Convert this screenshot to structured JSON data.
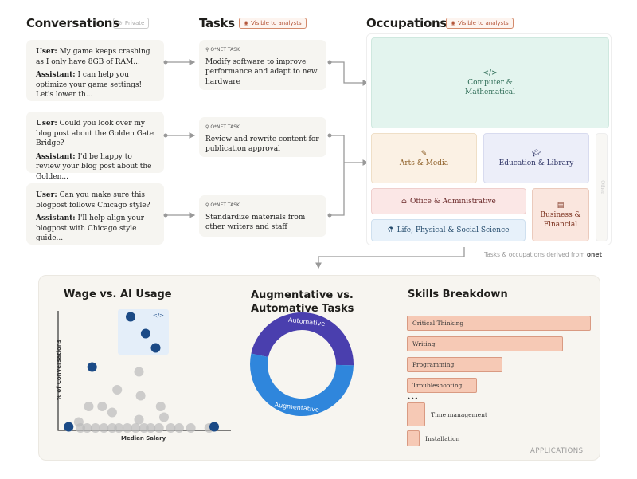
{
  "conversations": {
    "title": "Conversations",
    "badge": "Private",
    "items": [
      {
        "user_label": "User:",
        "user": "My game keeps crashing as I only have 8GB of RAM...",
        "assistant_label": "Assistant:",
        "assistant": "I can help you optimize your game settings! Let's lower th..."
      },
      {
        "user_label": "User:",
        "user": "Could you look over my blog post about the Golden Gate Bridge?",
        "assistant_label": "Assistant:",
        "assistant": "I'd be happy to review your blog post about the Golden..."
      },
      {
        "user_label": "User:",
        "user": "Can you make sure this blogpost follows Chicago style?",
        "assistant_label": "Assistant:",
        "assistant": "I'll help align your blogpost with Chicago style guide..."
      }
    ]
  },
  "tasks": {
    "title": "Tasks",
    "badge": "Visible to analysts",
    "items": [
      {
        "label": "O*NET TASK",
        "text": "Modify software to improve performance and adapt to new hardware"
      },
      {
        "label": "O*NET TASK",
        "text": "Review and rewrite content for publication approval"
      },
      {
        "label": "O*NET TASK",
        "text": "Standardize materials from other writers and staff"
      }
    ]
  },
  "occupations": {
    "title": "Occupations",
    "badge": "Visible to analysts",
    "items": [
      {
        "name": "Computer & Mathematical",
        "icon": "code-icon",
        "color": "#e3f4ee",
        "text": "#2d6b55"
      },
      {
        "name": "Arts & Media",
        "icon": "brush-icon",
        "color": "#fbf1e4",
        "text": "#8a5a20"
      },
      {
        "name": "Education & Library",
        "icon": "graduation-cap-icon",
        "color": "#eceef9",
        "text": "#2f3566"
      },
      {
        "name": "Office & Administrative",
        "icon": "building-icon",
        "color": "#fbe7e6",
        "text": "#6b2a2a"
      },
      {
        "name": "Life, Physical & Social Science",
        "icon": "flask-icon",
        "color": "#e7f1fa",
        "text": "#234a6b"
      },
      {
        "name": "Business & Financial",
        "icon": "table-icon",
        "color": "#fae6de",
        "text": "#7a2f1c"
      },
      {
        "name": "Other",
        "color": "#f8f7f4",
        "text": "#ccc"
      }
    ],
    "footer": "Tasks & occupations derived from",
    "footer_brand": "onet"
  },
  "applications": {
    "label": "APPLICATIONS",
    "wage": {
      "title": "Wage vs. AI Usage",
      "xlabel": "Median Salary",
      "ylabel": "% of Conversations"
    },
    "donut": {
      "title_line1": "Augmentative vs.",
      "title_line2": "Automative Tasks"
    },
    "skills": {
      "title": "Skills Breakdown",
      "ellipsis": "•••"
    }
  },
  "chart_data": [
    {
      "type": "scatter",
      "title": "Wage vs. AI Usage",
      "xlabel": "Median Salary",
      "ylabel": "% of Conversations",
      "xlim": [
        0,
        100
      ],
      "ylim": [
        0,
        100
      ],
      "highlighted": {
        "icon": "code-icon",
        "points": [
          [
            40,
            95
          ],
          [
            49,
            81
          ],
          [
            55,
            69
          ]
        ],
        "color": "#1b4a86"
      },
      "icon_points": [
        {
          "icon": "graduation-cap-icon",
          "x": 17,
          "y": 53
        },
        {
          "icon": "scale-icon",
          "x": 3,
          "y": 3
        },
        {
          "icon": "stethoscope-icon",
          "x": 90,
          "y": 3
        }
      ],
      "gray_points": [
        [
          45,
          49
        ],
        [
          32,
          34
        ],
        [
          46,
          29
        ],
        [
          15,
          20
        ],
        [
          23,
          20
        ],
        [
          29,
          15
        ],
        [
          45,
          9
        ],
        [
          58,
          20
        ],
        [
          60,
          11
        ],
        [
          9,
          7
        ],
        [
          10,
          2
        ],
        [
          14,
          2
        ],
        [
          19,
          2
        ],
        [
          24,
          2
        ],
        [
          29,
          2
        ],
        [
          33,
          2
        ],
        [
          38,
          2
        ],
        [
          43,
          2
        ],
        [
          48,
          2
        ],
        [
          52,
          2
        ],
        [
          57,
          2
        ],
        [
          64,
          2
        ],
        [
          69,
          2
        ],
        [
          76,
          2
        ],
        [
          87,
          2
        ]
      ]
    },
    {
      "type": "pie",
      "title": "Augmentative vs. Automative Tasks",
      "slices": [
        {
          "label": "Automative",
          "value": 47,
          "color": "#4a3fae"
        },
        {
          "label": "Augmentative",
          "value": 53,
          "color": "#2f86dc"
        }
      ]
    },
    {
      "type": "bar",
      "title": "Skills Breakdown",
      "categories": [
        "Critical Thinking",
        "Writing",
        "Programming",
        "Troubleshooting",
        "Time management",
        "Installation"
      ],
      "values": [
        100,
        85,
        52,
        38,
        10,
        7
      ]
    }
  ]
}
